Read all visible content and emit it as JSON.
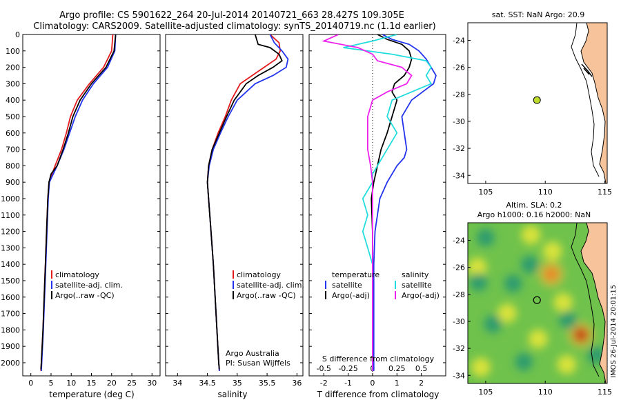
{
  "header": {
    "line1": "Argo profile: CS 5901622_264 20-Jul-2014 20140721_663 28.427S 109.305E",
    "line2": "Climatology: CARS2009. Satellite-adjusted climatology: synTS_20140719.nc (1.1d earlier)"
  },
  "footer_stamp": "IMOS 26-Jul-2014 20:01:15",
  "colors": {
    "climatology": "#e41a1c",
    "satellite": "#2233ee",
    "argo": "#000000",
    "sal_satellite": "#22dddd",
    "sal_argo": "#ee22ee",
    "land": "#f7c39a"
  },
  "chart_data": [
    {
      "type": "line",
      "id": "temperature_profile",
      "xlabel": "temperature (deg C)",
      "xlim": [
        -2,
        32
      ],
      "xticks": [
        0,
        5,
        10,
        15,
        20,
        25,
        30
      ],
      "ylim": [
        2080,
        0
      ],
      "yticks": [
        0,
        100,
        200,
        300,
        400,
        500,
        600,
        700,
        800,
        900,
        1000,
        1100,
        1200,
        1300,
        1400,
        1500,
        1600,
        1700,
        1800,
        1900,
        2000
      ],
      "legend": [
        "climatology",
        "satellite-adj. clim.",
        "Argo(..raw -QC)"
      ],
      "series": [
        {
          "name": "climatology",
          "color_key": "climatology",
          "depth": [
            0,
            100,
            200,
            300,
            400,
            500,
            600,
            700,
            800,
            900,
            1000,
            1200,
            1400,
            1600,
            1800,
            2000,
            2050
          ],
          "values": [
            20.3,
            20.0,
            18.0,
            14.5,
            11.5,
            9.8,
            8.8,
            7.6,
            6.0,
            4.5,
            4.2,
            3.9,
            3.6,
            3.3,
            3.0,
            2.6,
            2.5
          ]
        },
        {
          "name": "satellite-adj. clim.",
          "color_key": "satellite",
          "depth": [
            0,
            100,
            200,
            300,
            400,
            500,
            600,
            700,
            800,
            900,
            1000,
            1200,
            1400,
            1600,
            1800,
            2000,
            2050
          ],
          "values": [
            21.0,
            20.8,
            19.0,
            15.5,
            12.8,
            11.0,
            9.6,
            8.2,
            6.5,
            4.6,
            4.3,
            4.0,
            3.7,
            3.4,
            3.1,
            2.7,
            2.6
          ]
        },
        {
          "name": "Argo(..raw -QC)",
          "color_key": "argo",
          "depth": [
            0,
            100,
            200,
            300,
            400,
            500,
            600,
            700,
            800,
            850,
            900,
            1000,
            1200,
            1400,
            1600,
            1800,
            2000,
            2040
          ],
          "values": [
            21.0,
            20.6,
            18.6,
            15.0,
            12.2,
            10.4,
            9.3,
            8.0,
            6.5,
            5.0,
            4.5,
            4.2,
            3.9,
            3.6,
            3.3,
            3.0,
            2.6,
            2.5
          ]
        }
      ]
    },
    {
      "type": "line",
      "id": "salinity_profile",
      "xlabel": "salinity",
      "xlim": [
        33.8,
        36.1
      ],
      "xticks": [
        34,
        34.5,
        35,
        35.5,
        36
      ],
      "ylim": [
        2080,
        0
      ],
      "legend": [
        "climatology",
        "satellite-adj. clim.",
        "Argo(..raw -QC)"
      ],
      "annotation": [
        "Argo Australia",
        "PI: Susan Wijffels"
      ],
      "series": [
        {
          "name": "climatology",
          "color_key": "climatology",
          "depth": [
            0,
            50,
            100,
            150,
            200,
            250,
            300,
            400,
            500,
            600,
            700,
            800,
            900,
            1000,
            1200,
            1400,
            1600,
            1800,
            2000,
            2050
          ],
          "values": [
            35.55,
            35.7,
            35.72,
            35.65,
            35.45,
            35.25,
            35.05,
            34.9,
            34.8,
            34.68,
            34.58,
            34.52,
            34.5,
            34.52,
            34.56,
            34.6,
            34.63,
            34.66,
            34.69,
            34.7
          ]
        },
        {
          "name": "satellite-adj. clim.",
          "color_key": "satellite",
          "depth": [
            0,
            50,
            100,
            150,
            200,
            250,
            300,
            400,
            500,
            600,
            700,
            800,
            900,
            1000,
            1200,
            1400,
            1600,
            1800,
            2000,
            2050
          ],
          "values": [
            35.55,
            35.62,
            35.75,
            35.85,
            35.82,
            35.6,
            35.3,
            35.0,
            34.85,
            34.72,
            34.6,
            34.53,
            34.5,
            34.52,
            34.56,
            34.6,
            34.63,
            34.66,
            34.69,
            34.7
          ]
        },
        {
          "name": "Argo(..raw -QC)",
          "color_key": "argo",
          "depth": [
            0,
            60,
            80,
            120,
            160,
            200,
            250,
            300,
            400,
            500,
            600,
            700,
            800,
            900,
            1000,
            1200,
            1400,
            1600,
            1800,
            2000,
            2040
          ],
          "values": [
            35.3,
            35.35,
            35.55,
            35.7,
            35.75,
            35.6,
            35.35,
            35.15,
            34.95,
            34.82,
            34.7,
            34.58,
            34.52,
            34.5,
            34.52,
            34.56,
            34.6,
            34.63,
            34.66,
            34.69,
            34.7
          ]
        }
      ]
    },
    {
      "type": "line",
      "id": "difference_profile",
      "xlabel": "T difference from climatology",
      "xlabel_top": "S difference from climatology",
      "xlim": [
        -2.6,
        3.0
      ],
      "xticks_T": [
        -2,
        -1,
        0,
        1,
        2
      ],
      "xticks_S": [
        -0.5,
        -0.25,
        0,
        0.25,
        0.5
      ],
      "ylim": [
        2080,
        0
      ],
      "legend_temperature": {
        "title": "temperature",
        "entries": [
          "satellite",
          "Argo(-adj)"
        ]
      },
      "legend_salinity": {
        "title": "salinity",
        "entries": [
          "satellite",
          "Argo(-adj)"
        ]
      },
      "series": [
        {
          "name": "temperature satellite",
          "color_key": "satellite",
          "depth": [
            0,
            30,
            60,
            100,
            150,
            200,
            250,
            300,
            400,
            500,
            600,
            700,
            750,
            800,
            900,
            1000,
            1200,
            1400,
            1600,
            1800,
            2000,
            2050
          ],
          "values": [
            0.4,
            0.8,
            1.5,
            1.9,
            2.2,
            2.4,
            2.6,
            2.5,
            1.6,
            1.2,
            1.3,
            1.4,
            1.3,
            1.0,
            0.6,
            0.3,
            0.1,
            0.05,
            0.05,
            0.05,
            0.05,
            0.05
          ]
        },
        {
          "name": "temperature Argo(-adj)",
          "color_key": "argo",
          "depth": [
            0,
            30,
            60,
            100,
            150,
            200,
            250,
            300,
            350,
            400,
            500,
            600,
            700,
            800,
            900,
            1000,
            1200,
            1400,
            1600,
            1800,
            2000,
            2050
          ],
          "values": [
            0.2,
            0.6,
            1.2,
            1.5,
            1.6,
            1.5,
            1.3,
            0.9,
            0.8,
            1.0,
            0.8,
            0.6,
            0.35,
            0.2,
            0.05,
            -0.05,
            0.0,
            0.0,
            0.0,
            0.0,
            0.0,
            0.0
          ]
        },
        {
          "name": "salinity satellite",
          "color_key": "sal_satellite",
          "depth": [
            0,
            40,
            80,
            120,
            160,
            200,
            250,
            300,
            350,
            400,
            500,
            600,
            700,
            800,
            850,
            900,
            1000,
            1100,
            1200,
            1300,
            1400,
            1600,
            1800,
            2000,
            2050
          ],
          "values": [
            0.25,
            0.0,
            -0.3,
            0.2,
            0.55,
            0.6,
            0.55,
            0.6,
            0.4,
            0.2,
            0.15,
            0.25,
            0.15,
            0.05,
            0.0,
            0.0,
            -0.1,
            -0.05,
            -0.1,
            -0.05,
            0.0,
            0.0,
            0.0,
            0.0,
            0.0
          ]
        },
        {
          "name": "salinity Argo(-adj)",
          "color_key": "sal_argo",
          "depth": [
            0,
            40,
            80,
            120,
            160,
            200,
            250,
            300,
            350,
            400,
            500,
            600,
            700,
            800,
            900,
            1000,
            1200,
            1400,
            1600,
            1800,
            2000,
            2050
          ],
          "values": [
            -0.35,
            -0.5,
            -0.15,
            0.0,
            0.05,
            0.3,
            0.4,
            0.35,
            0.15,
            0.0,
            -0.05,
            -0.05,
            -0.05,
            -0.02,
            0.0,
            0.0,
            0.0,
            0.0,
            0.0,
            0.0,
            0.0,
            0.0
          ]
        }
      ]
    },
    {
      "type": "scatter",
      "id": "sst_map",
      "title": "sat. SST: NaN Argo: 20.9",
      "xlim": [
        103.5,
        115.2
      ],
      "ylim": [
        -34.6,
        -22.7
      ],
      "xticks": [
        105,
        110,
        115
      ],
      "yticks": [
        -24,
        -26,
        -28,
        -30,
        -32,
        -34
      ],
      "point": {
        "lon": 109.305,
        "lat": -28.427,
        "color": "#bddc2c"
      }
    },
    {
      "type": "heatmap",
      "id": "sla_map",
      "title_line1": "Altim. SLA: 0.2",
      "title_line2": "Argo h1000: 0.16 h2000: NaN",
      "xlim": [
        103.5,
        115.2
      ],
      "ylim": [
        -34.6,
        -22.7
      ],
      "xticks": [
        105,
        110,
        115
      ],
      "yticks": [
        -24,
        -26,
        -28,
        -30,
        -32,
        -34
      ],
      "point": {
        "lon": 109.305,
        "lat": -28.427
      },
      "blobs": [
        {
          "lon": 110.5,
          "lat": -26.5,
          "level": "orange"
        },
        {
          "lon": 113.0,
          "lat": -31.0,
          "level": "red"
        },
        {
          "lon": 104.3,
          "lat": -26.0,
          "level": "yellow"
        },
        {
          "lon": 108.8,
          "lat": -23.6,
          "level": "yellow"
        },
        {
          "lon": 110.6,
          "lat": -24.8,
          "level": "yellow"
        },
        {
          "lon": 106.8,
          "lat": -29.4,
          "level": "yellow"
        },
        {
          "lon": 111.5,
          "lat": -28.6,
          "level": "yellow"
        },
        {
          "lon": 109.4,
          "lat": -31.3,
          "level": "yellow"
        },
        {
          "lon": 104.6,
          "lat": -33.4,
          "level": "yellow"
        },
        {
          "lon": 111.8,
          "lat": -33.2,
          "level": "yellow"
        },
        {
          "lon": 104.4,
          "lat": -27.1,
          "level": "teal"
        },
        {
          "lon": 105.6,
          "lat": -30.2,
          "level": "teal"
        },
        {
          "lon": 107.3,
          "lat": -27.2,
          "level": "teal"
        },
        {
          "lon": 108.7,
          "lat": -25.8,
          "level": "teal"
        },
        {
          "lon": 108.2,
          "lat": -33.0,
          "level": "teal"
        },
        {
          "lon": 114.3,
          "lat": -32.5,
          "level": "teal"
        },
        {
          "lon": 111.9,
          "lat": -29.9,
          "level": "teal"
        },
        {
          "lon": 105.0,
          "lat": -23.8,
          "level": "teal"
        }
      ]
    }
  ]
}
